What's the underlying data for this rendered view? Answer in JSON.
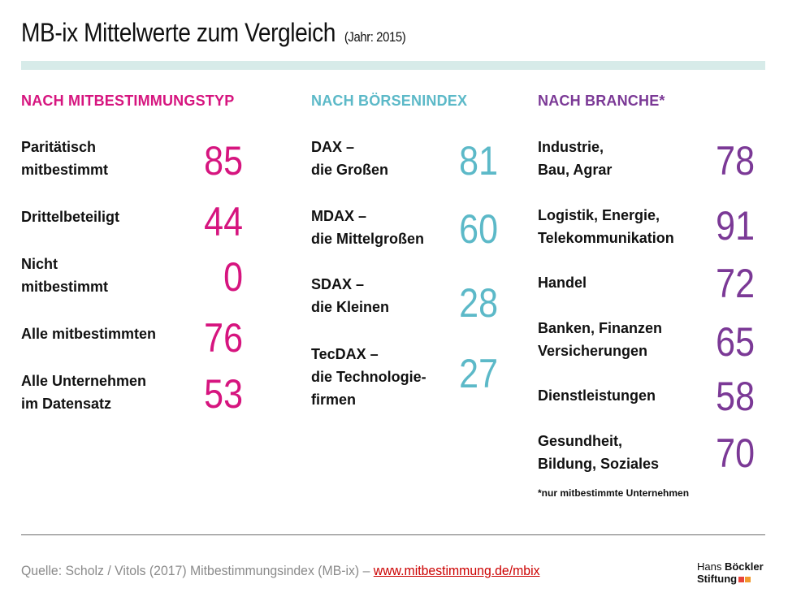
{
  "header": {
    "title": "MB-ix Mittelwerte zum Vergleich",
    "subtitle": "(Jahr: 2015)"
  },
  "colors": {
    "mitbestimmung": "#d6157f",
    "boersenindex": "#5cb9c8",
    "branche": "#7b3996",
    "band": "#d7ebe9"
  },
  "columns": [
    {
      "heading": "NACH MITBESTIMMUNGSTYP",
      "rows": [
        {
          "label": [
            "Paritätisch",
            "mitbestimmt"
          ],
          "value": "85"
        },
        {
          "label": [
            "Drittelbeteiligt"
          ],
          "value": "44"
        },
        {
          "label": [
            "Nicht",
            "mitbestimmt"
          ],
          "value": "0"
        },
        {
          "label": [
            "Alle mitbestimmten"
          ],
          "value": "76"
        },
        {
          "label": [
            "Alle Unternehmen",
            "im Datensatz"
          ],
          "value": "53"
        }
      ]
    },
    {
      "heading": "NACH  BÖRSENINDEX",
      "rows": [
        {
          "label": [
            "DAX –",
            "die Großen"
          ],
          "value": "81"
        },
        {
          "label": [
            "MDAX –",
            "die Mittelgroßen"
          ],
          "value": "60"
        },
        {
          "label": [
            "SDAX –",
            "die Kleinen"
          ],
          "value": "28"
        },
        {
          "label": [
            "TecDAX –",
            "die Technologie-",
            "firmen"
          ],
          "value": "27"
        }
      ]
    },
    {
      "heading": "NACH  BRANCHE*",
      "rows": [
        {
          "label": [
            "Industrie,",
            "Bau, Agrar"
          ],
          "value": "78"
        },
        {
          "label": [
            "Logistik, Energie,",
            "Telekommunikation"
          ],
          "value": "91"
        },
        {
          "label": [
            "Handel"
          ],
          "value": "72"
        },
        {
          "label": [
            "Banken, Finanzen",
            "Versicherungen"
          ],
          "value": "65"
        },
        {
          "label": [
            "Dienstleistungen"
          ],
          "value": "58"
        },
        {
          "label": [
            "Gesundheit,",
            "Bildung, Soziales"
          ],
          "value": "70"
        }
      ],
      "note": "*nur mitbestimmte Unternehmen"
    }
  ],
  "footer": {
    "source_prefix": "Quelle: Scholz / Vitols (2017) Mitbestimmungsindex (MB-ix) – ",
    "source_link": "www.mitbestimmung.de/mbix",
    "logo_line1_a": "Hans ",
    "logo_line1_b": "Böckler",
    "logo_line2": "Stiftung"
  }
}
